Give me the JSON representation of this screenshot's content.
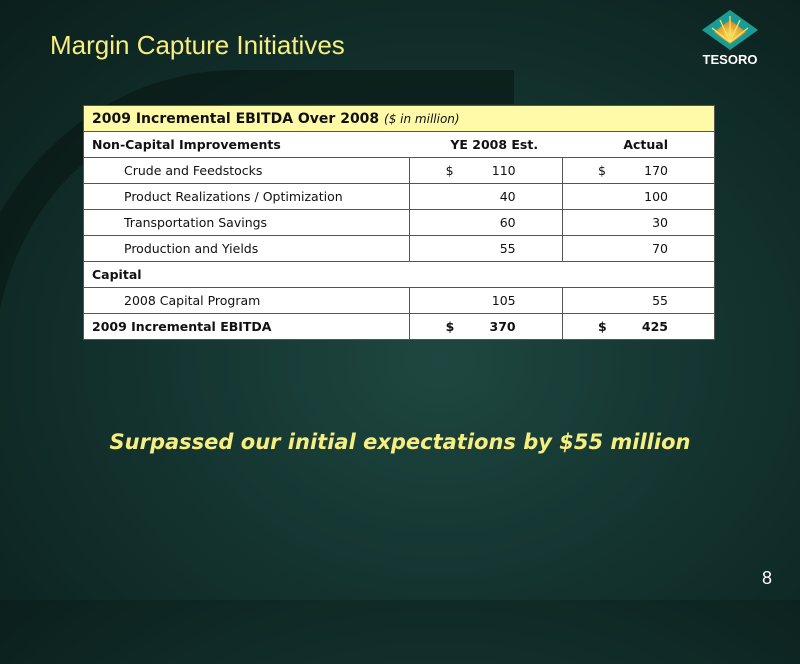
{
  "slide": {
    "title": "Margin Capture Initiatives",
    "logo_text": "TESORO",
    "tagline": "Surpassed our initial expectations by $55 million",
    "page_number": "8"
  },
  "table": {
    "header": "2009 Incremental EBITDA Over 2008",
    "header_unit": "($ in million)",
    "section1": {
      "label": "Non-Capital Improvements",
      "col_est": "YE 2008  Est.",
      "col_actual": "Actual"
    },
    "rows": [
      {
        "label": "Crude and Feedstocks",
        "est_cur": "$",
        "est": "110",
        "act_cur": "$",
        "act": "170"
      },
      {
        "label": "Product Realizations / Optimization",
        "est_cur": "",
        "est": "40",
        "act_cur": "",
        "act": "100"
      },
      {
        "label": "Transportation Savings",
        "est_cur": "",
        "est": "60",
        "act_cur": "",
        "act": "30"
      },
      {
        "label": "Production and Yields",
        "est_cur": "",
        "est": "55",
        "act_cur": "",
        "act": "70"
      }
    ],
    "section2": {
      "label": "Capital"
    },
    "capital_row": {
      "label": "2008 Capital Program",
      "est": "105",
      "act": "55"
    },
    "total": {
      "label": "2009 Incremental EBITDA",
      "est_cur": "$",
      "est": "370",
      "act_cur": "$",
      "act": "425"
    }
  }
}
